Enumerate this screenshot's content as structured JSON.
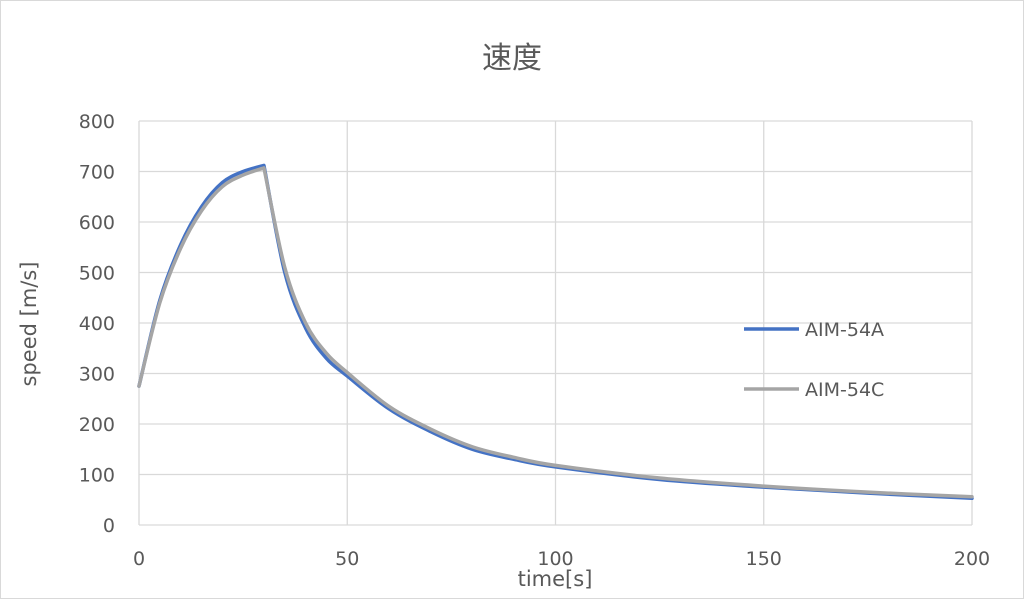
{
  "chart_data": {
    "type": "line",
    "title": "速度",
    "xlabel": "time[s]",
    "ylabel": "speed [m/s]",
    "xlim": [
      0,
      200
    ],
    "ylim": [
      0,
      800
    ],
    "xticks": [
      0,
      50,
      100,
      150,
      200
    ],
    "yticks": [
      0,
      100,
      200,
      300,
      400,
      500,
      600,
      700,
      800
    ],
    "grid": true,
    "legend_position": "right",
    "series": [
      {
        "name": "AIM-54A",
        "color": "#4472C4",
        "x": [
          0,
          5,
          10,
          15,
          20,
          25,
          30,
          35,
          40,
          45,
          50,
          60,
          70,
          80,
          90,
          100,
          125,
          150,
          175,
          200
        ],
        "values": [
          275,
          445,
          555,
          630,
          678,
          700,
          712,
          500,
          390,
          330,
          295,
          230,
          185,
          150,
          130,
          115,
          90,
          75,
          63,
          53
        ]
      },
      {
        "name": "AIM-54C",
        "color": "#A5A5A5",
        "x": [
          0,
          5,
          10,
          15,
          20,
          25,
          30,
          35,
          40,
          45,
          50,
          60,
          70,
          80,
          90,
          100,
          125,
          150,
          175,
          200
        ],
        "values": [
          275,
          440,
          548,
          622,
          670,
          693,
          707,
          510,
          400,
          340,
          302,
          235,
          190,
          155,
          134,
          118,
          93,
          77,
          65,
          56
        ]
      }
    ]
  }
}
